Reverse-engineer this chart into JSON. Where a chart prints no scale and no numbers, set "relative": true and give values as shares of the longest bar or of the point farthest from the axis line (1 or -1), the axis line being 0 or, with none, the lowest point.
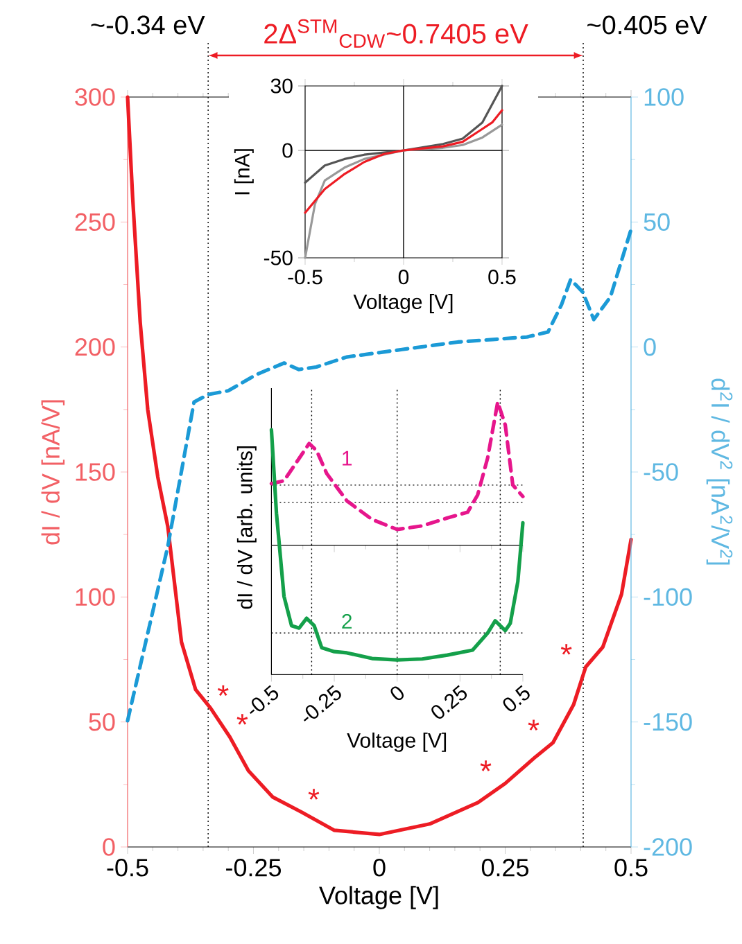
{
  "chart_data": [
    {
      "type": "line",
      "xlabel": "Voltage [V]",
      "ylabel": "dI / dV [nA/V]",
      "y2label": "d$^{2}$I / dV$^{2}$ [nA$^{2}$/V$^{2}$]",
      "xlim": [
        -0.5,
        0.5
      ],
      "xticks": [
        -0.5,
        -0.25,
        0,
        0.25,
        0.5
      ],
      "ylim": [
        0,
        300
      ],
      "yticks": [
        0,
        50,
        100,
        150,
        200,
        250,
        300
      ],
      "y2lim": [
        -200,
        100
      ],
      "y2ticks": [
        -200,
        -150,
        -100,
        -50,
        0,
        50,
        100
      ],
      "series": [
        {
          "color": "#ed1c24",
          "x": [
            -0.5,
            -0.49,
            -0.475,
            -0.46,
            -0.44,
            -0.42,
            -0.393,
            -0.365,
            -0.335,
            -0.297,
            -0.26,
            -0.212,
            -0.155,
            -0.09,
            0,
            0.1,
            0.196,
            0.25,
            0.31,
            0.345,
            0.386,
            0.41,
            0.444,
            0.481,
            0.5
          ],
          "values": [
            300,
            260,
            210,
            175,
            148,
            128,
            82,
            63,
            55.5,
            44,
            30.5,
            20,
            14,
            6.7,
            5,
            9.2,
            17.8,
            25.4,
            36,
            41.7,
            57,
            72,
            80,
            101,
            123
          ]
        },
        {
          "color": "#1b9ad6",
          "axis": "y2",
          "line_style": "dashed",
          "x": [
            -0.5,
            -0.42,
            -0.368,
            -0.34,
            -0.3,
            -0.244,
            -0.189,
            -0.16,
            -0.125,
            -0.065,
            0.045,
            0.156,
            0.225,
            0.293,
            0.335,
            0.362,
            0.38,
            0.404,
            0.426,
            0.459,
            0.5
          ],
          "values": [
            -149.5,
            -79.6,
            -22,
            -19,
            -17.5,
            -11,
            -6.4,
            -9,
            -8,
            -4,
            -1,
            2,
            3,
            4,
            6,
            17,
            27,
            22,
            11,
            20,
            47
          ]
        }
      ],
      "ref_lines": [
        {
          "axis": "x",
          "value": -0.34,
          "color": "#000000",
          "line_style": "dotted"
        },
        {
          "axis": "x",
          "value": 0.405,
          "color": "#000000",
          "line_style": "dotted"
        }
      ],
      "annotations": [
        "~-0.34 eV",
        "2Δ$^{STM}$$_{CDW}$~0.7405 eV",
        "~0.405 eV",
        {
          "text": "*",
          "x": -0.335,
          "y": 55.5
        },
        {
          "text": "*",
          "x": -0.297,
          "y": 44
        },
        {
          "text": "*",
          "x": -0.155,
          "y": 14
        },
        {
          "text": "*",
          "x": 0.25,
          "y": 25.4
        },
        {
          "text": "*",
          "x": 0.345,
          "y": 41.7
        },
        {
          "text": "*",
          "x": 0.41,
          "y": 72
        }
      ]
    },
    {
      "type": "line",
      "xlabel": "Voltage [V]",
      "ylabel": "I [nA]",
      "xlim": [
        -0.5,
        0.5
      ],
      "xticks": [
        -0.5,
        0,
        0.5
      ],
      "ylim": [
        -50,
        30
      ],
      "yticks": [
        -50,
        0,
        30
      ],
      "series": [
        {
          "color": "#555555",
          "x": [
            -0.5,
            -0.4,
            -0.3,
            -0.2,
            0,
            0.2,
            0.3,
            0.4,
            0.5
          ],
          "values": [
            -15,
            -7,
            -4,
            -2,
            0,
            3,
            5.5,
            13,
            30
          ]
        },
        {
          "color": "#999999",
          "x": [
            -0.5,
            -0.45,
            -0.4,
            -0.3,
            -0.2,
            0,
            0.2,
            0.3,
            0.4,
            0.5
          ],
          "values": [
            -50,
            -25,
            -14,
            -8,
            -4,
            0,
            1.2,
            2.5,
            6,
            12
          ]
        },
        {
          "color": "#ed1c24",
          "x": [
            -0.5,
            -0.4,
            -0.3,
            -0.2,
            -0.1,
            0,
            0.1,
            0.2,
            0.3,
            0.4,
            0.45,
            0.5
          ],
          "values": [
            -29,
            -18,
            -11,
            -5.4,
            -1.7,
            0,
            0.9,
            1.9,
            4,
            10,
            13,
            18.7
          ]
        }
      ],
      "ref_lines": [
        {
          "axis": "x",
          "value": 0,
          "color": "#000000",
          "line_style": "solid"
        },
        {
          "axis": "y",
          "value": 0,
          "color": "#000000",
          "line_style": "solid"
        }
      ]
    },
    {
      "type": "line",
      "relative": true,
      "tick_labels": false,
      "xlim": [
        -0.5,
        0.5
      ],
      "xticks": [
        -0.5,
        -0.25,
        0,
        0.25,
        0.5
      ],
      "series": [
        {
          "name": "1",
          "color": "#e6168c",
          "line_style": "dashed",
          "x": [
            -0.5,
            -0.45,
            -0.4,
            -0.35,
            -0.32,
            -0.28,
            -0.2,
            -0.1,
            0,
            0.1,
            0.2,
            0.28,
            0.32,
            0.36,
            0.4,
            0.43,
            0.46,
            0.5
          ],
          "values": [
            0.43,
            0.45,
            0.58,
            0.71,
            0.66,
            0.5,
            0.31,
            0.18,
            0.11,
            0.135,
            0.19,
            0.23,
            0.35,
            0.61,
            1,
            0.84,
            0.42,
            0.34
          ]
        }
      ],
      "ref_lines": [
        {
          "axis": "x",
          "value": -0.34,
          "color": "#000000",
          "line_style": "dotted"
        },
        {
          "axis": "x",
          "value": 0,
          "color": "#000000",
          "line_style": "dotted"
        },
        {
          "axis": "x",
          "value": 0.41,
          "color": "#000000",
          "line_style": "dotted"
        },
        {
          "axis": "y",
          "value": 0.42,
          "color": "#000000",
          "line_style": "dotted"
        },
        {
          "axis": "y",
          "value": 0.3,
          "color": "#000000",
          "line_style": "dotted"
        }
      ]
    },
    {
      "type": "line",
      "relative": true,
      "tick_labels": "x",
      "xlabel": "Voltage [V]",
      "ylabel": "dI / dV [arb. units]",
      "xlim": [
        -0.5,
        0.5
      ],
      "xticks": [
        -0.5,
        -0.25,
        0,
        0.25,
        0.5
      ],
      "series": [
        {
          "name": "2",
          "color": "#14a04a",
          "x": [
            -0.5,
            -0.48,
            -0.45,
            -0.42,
            -0.39,
            -0.36,
            -0.33,
            -0.3,
            -0.25,
            -0.2,
            -0.1,
            0,
            0.1,
            0.2,
            0.3,
            0.36,
            0.39,
            0.43,
            0.45,
            0.48,
            0.5
          ],
          "values": [
            1,
            0.66,
            0.32,
            0.2,
            0.19,
            0.23,
            0.2,
            0.11,
            0.094,
            0.089,
            0.066,
            0.06,
            0.064,
            0.08,
            0.1,
            0.17,
            0.22,
            0.18,
            0.21,
            0.38,
            0.62
          ]
        }
      ],
      "ref_lines": [
        {
          "axis": "x",
          "value": -0.34,
          "color": "#000000",
          "line_style": "dotted"
        },
        {
          "axis": "x",
          "value": 0,
          "color": "#000000",
          "line_style": "dotted"
        },
        {
          "axis": "x",
          "value": 0.41,
          "color": "#000000",
          "line_style": "dotted"
        },
        {
          "axis": "y",
          "value": 0.17,
          "color": "#000000",
          "line_style": "dotted"
        }
      ]
    }
  ]
}
